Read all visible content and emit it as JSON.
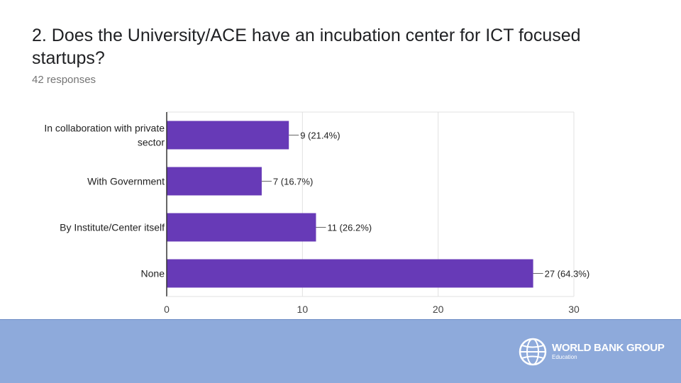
{
  "question": "2. Does the University/ACE have an incubation center for ICT focused startups?",
  "responses": "42 responses",
  "chart_data": {
    "type": "bar",
    "orientation": "horizontal",
    "title": "2. Does the University/ACE have an incubation center for ICT focused startups?",
    "categories": [
      "In collaboration with private sector",
      "With Government",
      "By Institute/Center itself",
      "None"
    ],
    "category_lines": [
      [
        "In collaboration with private",
        "sector"
      ],
      [
        "With Government"
      ],
      [
        "By Institute/Center itself"
      ],
      [
        "None"
      ]
    ],
    "values": [
      9,
      7,
      11,
      27
    ],
    "data_labels": [
      "9 (21.4%)",
      "7 (16.7%)",
      "11 (26.2%)",
      "27 (64.3%)"
    ],
    "xlim": [
      0,
      30
    ],
    "xticks": [
      0,
      10,
      20,
      30
    ],
    "grid": true,
    "bar_color": "#673ab7",
    "xlabel": "",
    "ylabel": ""
  },
  "footer": {
    "color": "#8eaadb",
    "logo_icon": "globe-icon",
    "logo_name": "WORLD BANK GROUP",
    "logo_subtitle": "Education"
  }
}
